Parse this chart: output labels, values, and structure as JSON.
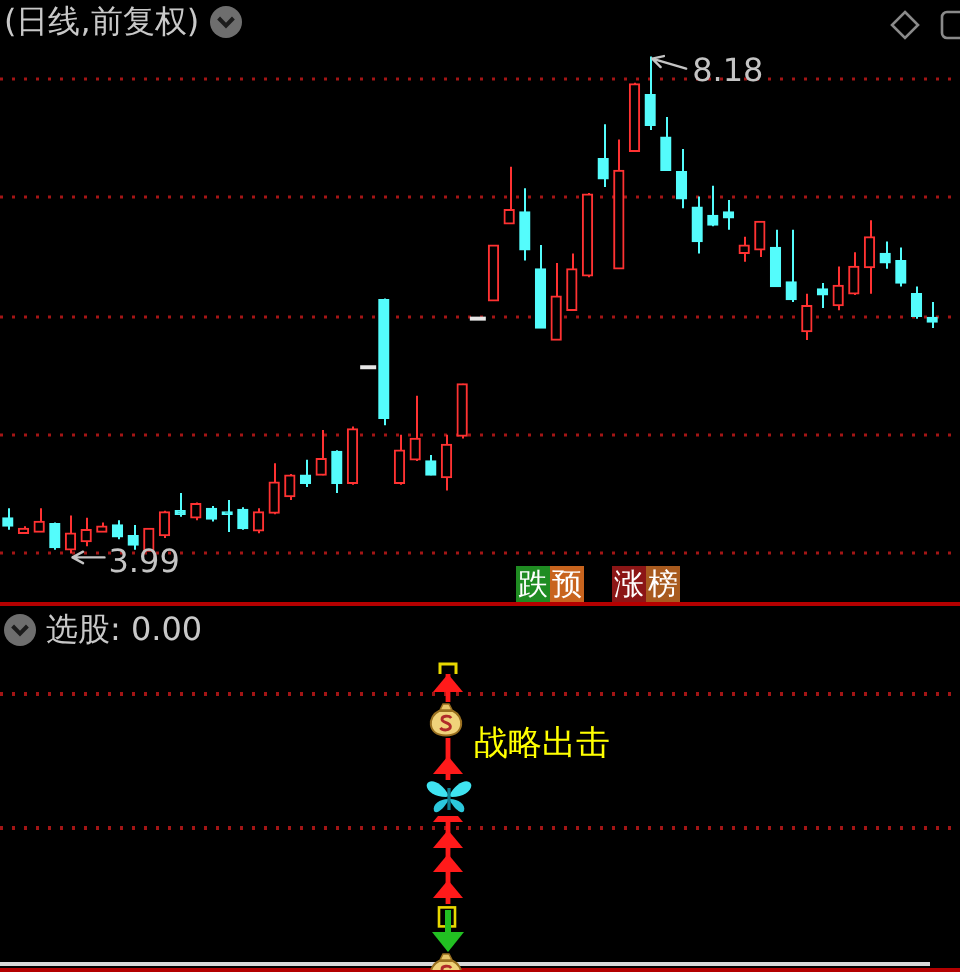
{
  "chart_data": [
    {
      "type": "candlestick",
      "title": "(日线,前复权)",
      "categories": [
        null,
        null,
        null,
        null,
        null,
        null,
        null,
        null,
        null,
        null,
        null,
        null,
        null,
        null,
        null,
        null,
        null,
        null,
        null,
        null,
        null,
        null,
        null,
        null,
        null,
        null,
        null,
        null,
        null,
        null,
        null,
        null,
        null,
        null,
        null,
        null,
        null,
        null,
        null,
        null,
        null,
        null,
        null,
        null,
        null,
        null,
        null,
        null,
        null,
        null,
        null,
        null,
        null,
        null,
        null,
        null,
        null,
        null,
        null,
        null
      ],
      "ohlc": [
        [
          4.29,
          4.37,
          4.19,
          4.22
        ],
        [
          4.16,
          4.22,
          4.16,
          4.2
        ],
        [
          4.17,
          4.37,
          4.17,
          4.26
        ],
        [
          4.24,
          4.25,
          4.02,
          4.04
        ],
        [
          4.02,
          4.31,
          3.99,
          4.16
        ],
        [
          4.09,
          4.29,
          4.05,
          4.19
        ],
        [
          4.17,
          4.25,
          4.17,
          4.22
        ],
        [
          4.23,
          4.27,
          4.11,
          4.13
        ],
        [
          4.14,
          4.23,
          4.02,
          4.06
        ],
        [
          4.01,
          4.2,
          4.01,
          4.2
        ],
        [
          4.14,
          4.35,
          4.12,
          4.34
        ],
        [
          4.35,
          4.5,
          4.3,
          4.32
        ],
        [
          4.29,
          4.42,
          4.27,
          4.41
        ],
        [
          4.37,
          4.39,
          4.26,
          4.28
        ],
        [
          4.34,
          4.44,
          4.17,
          4.32
        ],
        [
          4.36,
          4.38,
          4.19,
          4.2
        ],
        [
          4.18,
          4.37,
          4.16,
          4.34
        ],
        [
          4.33,
          4.75,
          4.32,
          4.59
        ],
        [
          4.47,
          4.66,
          4.44,
          4.65
        ],
        [
          4.65,
          4.78,
          4.55,
          4.58
        ],
        [
          4.65,
          5.03,
          4.65,
          4.79
        ],
        [
          4.85,
          4.86,
          4.5,
          4.58
        ],
        [
          4.58,
          5.06,
          4.57,
          5.04
        ],
        [
          5.56,
          5.56,
          5.56,
          5.56
        ],
        [
          6.13,
          6.14,
          5.07,
          5.13
        ],
        [
          4.58,
          4.99,
          4.57,
          4.86
        ],
        [
          4.78,
          5.32,
          4.77,
          4.96
        ],
        [
          4.77,
          4.82,
          4.65,
          4.65
        ],
        [
          4.63,
          4.99,
          4.52,
          4.91
        ],
        [
          4.98,
          5.42,
          4.96,
          5.42
        ],
        [
          5.97,
          5.97,
          5.97,
          5.97
        ],
        [
          6.12,
          6.59,
          6.12,
          6.59
        ],
        [
          6.77,
          7.25,
          6.77,
          6.89
        ],
        [
          6.87,
          7.07,
          6.46,
          6.55
        ],
        [
          6.39,
          6.59,
          5.89,
          5.89
        ],
        [
          5.79,
          6.44,
          5.79,
          6.16
        ],
        [
          6.04,
          6.52,
          6.04,
          6.39
        ],
        [
          6.33,
          7.03,
          6.32,
          7.02
        ],
        [
          7.32,
          7.61,
          7.08,
          7.15
        ],
        [
          6.39,
          7.48,
          6.39,
          7.22
        ],
        [
          7.38,
          7.96,
          7.38,
          7.95
        ],
        [
          7.86,
          8.18,
          7.56,
          7.6
        ],
        [
          7.5,
          7.67,
          7.22,
          7.22
        ],
        [
          7.21,
          7.4,
          6.9,
          6.98
        ],
        [
          6.91,
          7.0,
          6.52,
          6.62
        ],
        [
          6.84,
          7.09,
          6.75,
          6.76
        ],
        [
          6.87,
          6.97,
          6.72,
          6.82
        ],
        [
          6.52,
          6.66,
          6.45,
          6.59
        ],
        [
          6.55,
          6.79,
          6.49,
          6.79
        ],
        [
          6.57,
          6.72,
          6.24,
          6.24
        ],
        [
          6.28,
          6.72,
          6.11,
          6.13
        ],
        [
          5.86,
          6.18,
          5.79,
          6.08
        ],
        [
          6.22,
          6.27,
          6.06,
          6.17
        ],
        [
          6.08,
          6.41,
          6.04,
          6.25
        ],
        [
          6.18,
          6.53,
          6.17,
          6.41
        ],
        [
          6.4,
          6.8,
          6.18,
          6.66
        ],
        [
          6.52,
          6.62,
          6.39,
          6.44
        ],
        [
          6.46,
          6.57,
          6.24,
          6.27
        ],
        [
          6.18,
          6.24,
          5.97,
          5.99
        ],
        [
          5.98,
          6.11,
          5.89,
          5.94
        ]
      ],
      "colors": [
        "#54fcfc",
        "#ff3232",
        "#ff3232",
        "#54fcfc",
        "#ff3232",
        "#ff3232",
        "#ff3232",
        "#54fcfc",
        "#54fcfc",
        "#ff3232",
        "#ff3232",
        "#54fcfc",
        "#ff3232",
        "#54fcfc",
        "#54fcfc",
        "#54fcfc",
        "#ff3232",
        "#ff3232",
        "#ff3232",
        "#54fcfc",
        "#ff3232",
        "#54fcfc",
        "#ff3232",
        "#e6e6e6",
        "#54fcfc",
        "#ff3232",
        "#ff3232",
        "#54fcfc",
        "#ff3232",
        "#ff3232",
        "#e6e6e6",
        "#ff3232",
        "#ff3232",
        "#54fcfc",
        "#54fcfc",
        "#ff3232",
        "#ff3232",
        "#ff3232",
        "#54fcfc",
        "#ff3232",
        "#ff3232",
        "#54fcfc",
        "#54fcfc",
        "#54fcfc",
        "#54fcfc",
        "#54fcfc",
        "#54fcfc",
        "#ff3232",
        "#ff3232",
        "#54fcfc",
        "#54fcfc",
        "#ff3232",
        "#54fcfc",
        "#ff3232",
        "#ff3232",
        "#ff3232",
        "#54fcfc",
        "#54fcfc",
        "#54fcfc",
        "#54fcfc"
      ],
      "yticks": [
        {
          "value": 8,
          "label": null
        },
        {
          "value": 7,
          "label": null
        },
        {
          "value": 6,
          "label": null
        },
        {
          "value": 5,
          "label": null
        },
        {
          "value": 4,
          "label": null
        }
      ],
      "grid": "y",
      "tick_labels": false,
      "annotations": [
        "8.18",
        "3.99",
        "跌预",
        "涨榜"
      ]
    },
    {
      "type": "other",
      "title": "选股: 0.00",
      "annotations": [
        "战略出击"
      ]
    }
  ]
}
